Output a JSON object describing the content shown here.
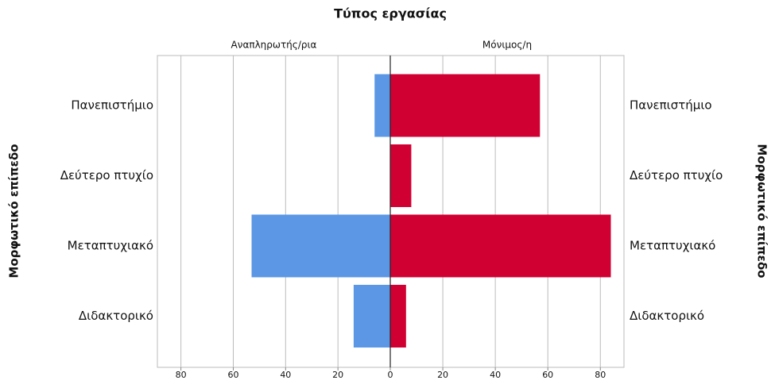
{
  "chart_data": {
    "type": "pyramid",
    "title": "Τύπος εργασίας",
    "ylabel": "Μορφωτικό επίπεδο",
    "categories": [
      "Πανεπιστήμιο",
      "Δεύτερο πτυχίο",
      "Μεταπτυχιακό",
      "Διδακτορικό"
    ],
    "series": [
      {
        "name": "Αναπληρωτής/ρια",
        "color": "#5b97e5",
        "values": [
          6,
          0,
          53,
          14
        ]
      },
      {
        "name": "Μόνιμος/η",
        "color": "#d10033",
        "values": [
          57,
          8,
          84,
          6
        ]
      }
    ],
    "xlim": [
      0,
      89
    ],
    "xticks": [
      0,
      20,
      40,
      60,
      80
    ],
    "grid": true
  }
}
